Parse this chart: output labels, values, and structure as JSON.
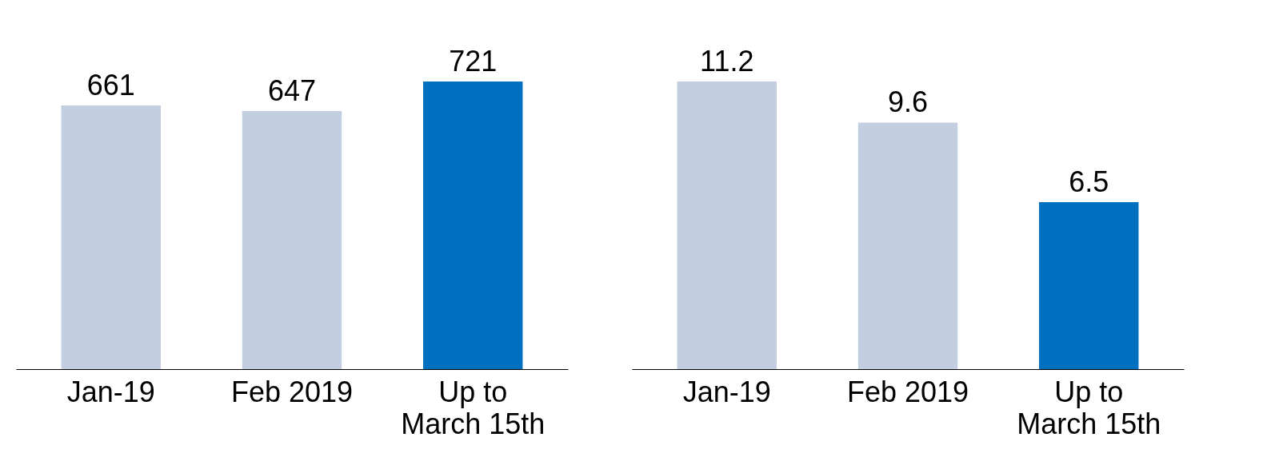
{
  "chart_data": [
    {
      "type": "bar",
      "categories": [
        "Jan-19",
        "Feb 2019",
        "Up to\nMarch 15th"
      ],
      "values": [
        661,
        647,
        721
      ],
      "colors": [
        "#c3cee0",
        "#c3cee0",
        "#0070c0"
      ],
      "data_labels": true
    },
    {
      "type": "bar",
      "categories": [
        "Jan-19",
        "Feb 2019",
        "Up to\nMarch 15th"
      ],
      "values": [
        11.2,
        9.6,
        6.5
      ],
      "colors": [
        "#c3cee0",
        "#c3cee0",
        "#0070c0"
      ],
      "data_labels": true
    }
  ]
}
